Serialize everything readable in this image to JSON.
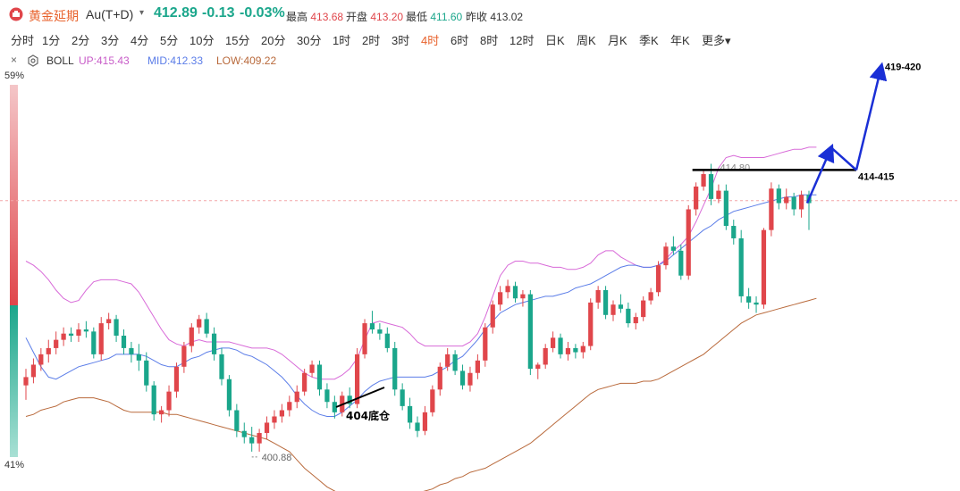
{
  "header": {
    "title": "黄金延期",
    "code": "Au(T+D)",
    "caret": "▾",
    "price": "412.89",
    "change": "-0.13",
    "change_pct": "-0.03%",
    "high_label": "最高",
    "high_value": "413.68",
    "open_label": "开盘",
    "open_value": "413.20",
    "low_label": "最低",
    "low_value": "411.60",
    "prev_label": "昨收",
    "prev_value": "413.02"
  },
  "periods": [
    "分时",
    "1分",
    "2分",
    "3分",
    "4分",
    "5分",
    "10分",
    "15分",
    "20分",
    "30分",
    "1时",
    "2时",
    "3时",
    "4时",
    "6时",
    "8时",
    "12时",
    "日K",
    "周K",
    "月K",
    "季K",
    "年K",
    "更多"
  ],
  "active_period": "4时",
  "indicator": {
    "close_icon": "×",
    "settings_icon": "gear-icon",
    "name": "BOLL",
    "up": "UP:415.43",
    "mid": "MID:412.33",
    "low": "LOW:409.22"
  },
  "sidebar": {
    "top_pct": "59%",
    "bottom_pct": "41%"
  },
  "colors": {
    "up": "#e0464b",
    "down": "#1aa68b",
    "boll_up": "#d86ad8",
    "boll_mid": "#5b7de8",
    "boll_low": "#b96a3c",
    "accent": "#e8622c",
    "arrow": "#1a2fd6"
  },
  "chart_data": {
    "type": "candlestick",
    "y_range": [
      399,
      419
    ],
    "candles": [
      [
        404.1,
        404.9,
        403.4,
        404.5
      ],
      [
        404.5,
        405.4,
        404.2,
        405.1
      ],
      [
        405.1,
        405.9,
        404.8,
        405.6
      ],
      [
        405.6,
        406.3,
        405.2,
        405.9
      ],
      [
        405.9,
        406.7,
        405.6,
        406.3
      ],
      [
        406.3,
        406.9,
        406.0,
        406.6
      ],
      [
        406.6,
        406.9,
        406.2,
        406.5
      ],
      [
        406.5,
        407.1,
        406.2,
        406.8
      ],
      [
        406.8,
        407.2,
        406.4,
        406.7
      ],
      [
        406.7,
        406.9,
        405.4,
        405.6
      ],
      [
        405.6,
        407.4,
        405.3,
        407.1
      ],
      [
        407.1,
        407.6,
        406.8,
        407.3
      ],
      [
        407.3,
        407.5,
        406.2,
        406.5
      ],
      [
        406.5,
        406.8,
        405.6,
        405.9
      ],
      [
        405.9,
        406.2,
        405.2,
        405.6
      ],
      [
        405.6,
        406.1,
        404.8,
        405.3
      ],
      [
        405.3,
        405.7,
        403.8,
        404.1
      ],
      [
        404.1,
        404.3,
        402.4,
        402.7
      ],
      [
        402.7,
        403.1,
        402.3,
        402.9
      ],
      [
        402.9,
        404.1,
        402.6,
        403.8
      ],
      [
        403.8,
        405.2,
        403.5,
        405.0
      ],
      [
        405.0,
        406.2,
        404.7,
        406.0
      ],
      [
        406.0,
        407.1,
        405.7,
        406.9
      ],
      [
        406.9,
        407.5,
        406.6,
        407.3
      ],
      [
        407.3,
        407.6,
        406.4,
        406.6
      ],
      [
        406.6,
        406.9,
        405.3,
        405.6
      ],
      [
        405.6,
        405.9,
        404.1,
        404.4
      ],
      [
        404.4,
        404.6,
        402.6,
        402.9
      ],
      [
        402.9,
        403.2,
        401.6,
        401.9
      ],
      [
        401.9,
        402.3,
        401.3,
        401.6
      ],
      [
        401.6,
        402.1,
        400.9,
        401.3
      ],
      [
        401.3,
        402.0,
        400.9,
        401.8
      ],
      [
        401.8,
        402.6,
        401.5,
        402.3
      ],
      [
        402.3,
        402.9,
        402.0,
        402.6
      ],
      [
        402.6,
        403.2,
        402.3,
        402.9
      ],
      [
        402.9,
        403.6,
        402.6,
        403.3
      ],
      [
        403.3,
        404.1,
        403.0,
        403.8
      ],
      [
        403.8,
        404.9,
        403.6,
        404.7
      ],
      [
        404.7,
        405.3,
        404.5,
        405.1
      ],
      [
        405.1,
        405.3,
        403.6,
        403.9
      ],
      [
        403.9,
        404.2,
        403.0,
        403.3
      ],
      [
        403.3,
        403.6,
        402.5,
        402.8
      ],
      [
        402.8,
        403.8,
        402.6,
        403.6
      ],
      [
        403.6,
        404.0,
        403.0,
        403.2
      ],
      [
        403.2,
        405.9,
        403.0,
        405.6
      ],
      [
        405.6,
        407.3,
        405.4,
        407.1
      ],
      [
        407.1,
        407.7,
        406.6,
        406.8
      ],
      [
        406.8,
        407.1,
        406.3,
        406.6
      ],
      [
        406.6,
        406.9,
        405.7,
        405.9
      ],
      [
        405.9,
        406.2,
        403.6,
        403.9
      ],
      [
        403.9,
        404.2,
        402.9,
        403.1
      ],
      [
        403.1,
        403.5,
        402.0,
        402.3
      ],
      [
        402.3,
        402.6,
        401.6,
        401.9
      ],
      [
        401.9,
        403.1,
        401.7,
        402.8
      ],
      [
        402.8,
        404.1,
        402.6,
        403.9
      ],
      [
        403.9,
        405.2,
        403.6,
        405.0
      ],
      [
        405.0,
        405.9,
        404.8,
        405.6
      ],
      [
        405.6,
        405.8,
        404.6,
        404.8
      ],
      [
        404.8,
        405.1,
        403.9,
        404.1
      ],
      [
        404.1,
        405.0,
        403.8,
        404.7
      ],
      [
        404.7,
        405.6,
        404.4,
        405.3
      ],
      [
        405.3,
        407.1,
        405.0,
        406.9
      ],
      [
        406.9,
        408.2,
        406.6,
        408.0
      ],
      [
        408.0,
        408.9,
        407.7,
        408.6
      ],
      [
        408.6,
        409.2,
        408.3,
        408.9
      ],
      [
        408.9,
        409.1,
        408.1,
        408.3
      ],
      [
        408.3,
        408.7,
        407.9,
        408.5
      ],
      [
        408.5,
        408.7,
        404.6,
        404.9
      ],
      [
        404.9,
        405.2,
        404.4,
        405.1
      ],
      [
        405.1,
        406.1,
        404.9,
        405.9
      ],
      [
        405.9,
        406.7,
        405.7,
        406.4
      ],
      [
        406.4,
        406.6,
        405.4,
        405.6
      ],
      [
        405.6,
        406.2,
        405.3,
        405.9
      ],
      [
        405.9,
        406.1,
        405.4,
        405.7
      ],
      [
        405.7,
        406.2,
        405.4,
        406.0
      ],
      [
        406.0,
        408.3,
        405.8,
        408.1
      ],
      [
        408.1,
        408.9,
        407.8,
        408.7
      ],
      [
        408.7,
        408.9,
        407.3,
        407.5
      ],
      [
        407.5,
        408.2,
        407.2,
        408.0
      ],
      [
        408.0,
        408.5,
        407.6,
        407.8
      ],
      [
        407.8,
        408.1,
        406.9,
        407.1
      ],
      [
        407.1,
        407.6,
        406.8,
        407.4
      ],
      [
        407.4,
        408.4,
        407.2,
        408.2
      ],
      [
        408.2,
        408.8,
        408.0,
        408.6
      ],
      [
        408.6,
        410.1,
        408.4,
        409.9
      ],
      [
        409.9,
        411.0,
        409.7,
        410.8
      ],
      [
        410.8,
        411.3,
        410.4,
        410.6
      ],
      [
        410.6,
        410.9,
        409.2,
        409.4
      ],
      [
        409.4,
        412.8,
        409.2,
        412.6
      ],
      [
        412.6,
        413.9,
        412.3,
        413.7
      ],
      [
        413.7,
        414.5,
        413.5,
        414.3
      ],
      [
        414.3,
        414.8,
        412.8,
        413.1
      ],
      [
        413.1,
        413.8,
        412.9,
        413.5
      ],
      [
        413.5,
        413.8,
        411.6,
        411.8
      ],
      [
        411.8,
        412.1,
        410.9,
        411.2
      ],
      [
        411.2,
        411.6,
        408.1,
        408.4
      ],
      [
        408.4,
        408.8,
        407.8,
        408.1
      ],
      [
        408.1,
        408.4,
        407.6,
        408.0
      ],
      [
        408.0,
        411.7,
        407.8,
        411.6
      ],
      [
        411.6,
        413.9,
        411.3,
        413.6
      ],
      [
        413.6,
        413.8,
        412.6,
        412.9
      ],
      [
        412.9,
        413.6,
        412.6,
        413.2
      ],
      [
        413.2,
        413.4,
        412.3,
        412.6
      ],
      [
        412.6,
        413.5,
        412.2,
        413.3
      ],
      [
        413.3,
        413.5,
        411.6,
        412.9
      ]
    ],
    "boll_up": [
      410.1,
      409.9,
      409.6,
      409.2,
      408.7,
      408.3,
      408.1,
      408.2,
      408.7,
      409.1,
      409.2,
      409.2,
      409.2,
      409.1,
      409.0,
      408.6,
      408.0,
      407.4,
      406.8,
      406.3,
      406.1,
      406.0,
      406.2,
      406.3,
      406.2,
      406.2,
      406.2,
      406.2,
      406.1,
      406.0,
      405.9,
      405.9,
      405.9,
      405.8,
      405.6,
      405.3,
      405.0,
      404.7,
      404.5,
      404.4,
      404.4,
      404.4,
      404.6,
      404.9,
      405.4,
      406.3,
      407.1,
      407.2,
      407.1,
      407.0,
      406.9,
      406.6,
      406.2,
      406.0,
      406.0,
      406.0,
      406.0,
      406.0,
      406.0,
      406.2,
      406.6,
      407.4,
      408.4,
      409.4,
      409.9,
      410.1,
      410.1,
      410.0,
      410.0,
      409.9,
      409.8,
      409.8,
      409.7,
      409.7,
      409.8,
      410.0,
      410.4,
      410.6,
      410.6,
      410.3,
      410.1,
      409.9,
      409.8,
      409.8,
      409.9,
      410.2,
      410.6,
      410.9,
      411.3,
      412.0,
      412.8,
      413.6,
      414.6,
      415.1,
      415.2,
      415.1,
      415.1,
      415.1,
      415.1,
      415.2,
      415.3,
      415.4,
      415.5,
      415.5,
      415.6,
      415.6
    ],
    "boll_mid": [
      406.4,
      405.7,
      405.0,
      404.5,
      404.4,
      404.6,
      404.8,
      405.0,
      405.1,
      405.2,
      405.3,
      405.4,
      405.6,
      405.6,
      405.6,
      405.6,
      405.5,
      405.3,
      405.1,
      405.0,
      405.0,
      405.2,
      405.4,
      405.5,
      405.7,
      405.8,
      405.9,
      405.9,
      405.8,
      405.6,
      405.5,
      405.3,
      405.1,
      404.8,
      404.5,
      404.1,
      403.6,
      403.2,
      402.9,
      402.7,
      402.6,
      402.6,
      402.8,
      403.1,
      403.4,
      403.8,
      404.1,
      404.3,
      404.4,
      404.5,
      404.5,
      404.5,
      404.5,
      404.5,
      404.6,
      404.8,
      405.0,
      405.3,
      405.5,
      405.9,
      406.3,
      406.8,
      407.2,
      407.6,
      407.8,
      408.0,
      408.1,
      408.2,
      408.3,
      408.4,
      408.4,
      408.5,
      408.6,
      408.8,
      408.9,
      409.0,
      409.2,
      409.4,
      409.6,
      409.8,
      409.9,
      409.9,
      409.8,
      409.8,
      409.9,
      410.1,
      410.4,
      410.7,
      411.0,
      411.3,
      411.6,
      411.8,
      412.1,
      412.3,
      412.5,
      412.6,
      412.7,
      412.8,
      412.9,
      413.0,
      413.1,
      413.2,
      413.2,
      413.3,
      413.3,
      413.3
    ],
    "boll_low": [
      402.6,
      402.7,
      402.9,
      403.0,
      403.1,
      403.3,
      403.4,
      403.5,
      403.5,
      403.5,
      403.4,
      403.3,
      403.1,
      402.9,
      402.8,
      402.8,
      402.8,
      402.8,
      402.8,
      402.7,
      402.7,
      402.6,
      402.5,
      402.4,
      402.3,
      402.2,
      402.1,
      402.0,
      401.9,
      401.8,
      401.7,
      401.6,
      401.5,
      401.3,
      401.1,
      400.9,
      400.5,
      400.1,
      399.8,
      399.5,
      399.2,
      399.0,
      398.8,
      398.7,
      398.7,
      398.7,
      398.7,
      398.7,
      398.7,
      398.7,
      398.7,
      398.8,
      398.9,
      399.0,
      399.1,
      399.3,
      399.4,
      399.6,
      399.7,
      399.9,
      400.0,
      400.1,
      400.3,
      400.5,
      400.7,
      400.9,
      401.1,
      401.3,
      401.6,
      401.9,
      402.2,
      402.5,
      402.8,
      403.1,
      403.4,
      403.7,
      403.9,
      404.0,
      404.1,
      404.2,
      404.2,
      404.2,
      404.3,
      404.3,
      404.4,
      404.6,
      404.8,
      405.0,
      405.2,
      405.4,
      405.6,
      405.9,
      406.2,
      406.5,
      406.8,
      407.1,
      407.3,
      407.5,
      407.6,
      407.7,
      407.8,
      407.9,
      408.0,
      408.1,
      408.2,
      408.3
    ],
    "prev_close": 413.02,
    "annotations": [
      {
        "text": "414.80",
        "kind": "high-marker"
      },
      {
        "text": "400.88",
        "kind": "low-marker"
      },
      {
        "text": "414-415",
        "kind": "resistance",
        "value": 414.5
      },
      {
        "text": "419-420",
        "kind": "target",
        "value": 419.5
      },
      {
        "text": "404底仓",
        "kind": "support",
        "value": 404
      }
    ]
  }
}
